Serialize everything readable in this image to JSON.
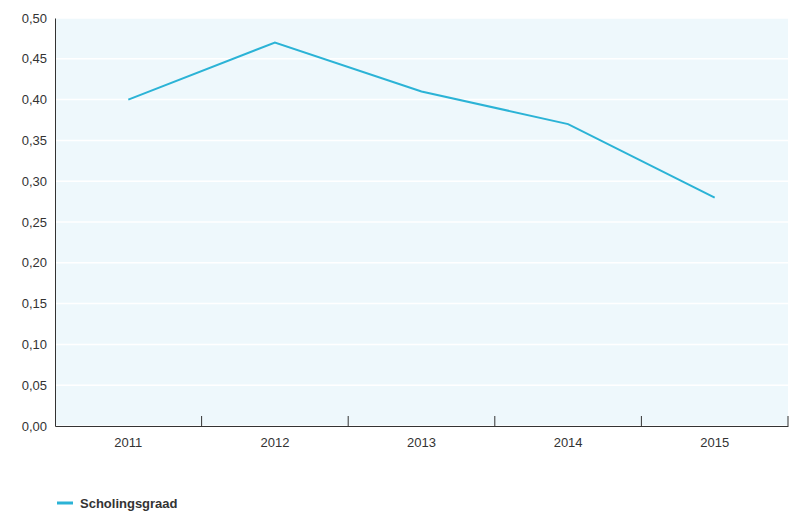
{
  "chart_data": {
    "type": "line",
    "categories": [
      "2011",
      "2012",
      "2013",
      "2014",
      "2015"
    ],
    "series": [
      {
        "name": "Scholingsgraad",
        "color": "#2bb3d6",
        "values": [
          0.4,
          0.47,
          0.41,
          0.37,
          0.28
        ]
      }
    ],
    "ylim": [
      0,
      0.5
    ],
    "yticks": [
      {
        "value": 0,
        "label": "0,00"
      },
      {
        "value": 0.05,
        "label": "0,05"
      },
      {
        "value": 0.1,
        "label": "0,10"
      },
      {
        "value": 0.15,
        "label": "0,15"
      },
      {
        "value": 0.2,
        "label": "0,20"
      },
      {
        "value": 0.25,
        "label": "0,25"
      },
      {
        "value": 0.3,
        "label": "0,30"
      },
      {
        "value": 0.35,
        "label": "0,35"
      },
      {
        "value": 0.4,
        "label": "0,40"
      },
      {
        "value": 0.45,
        "label": "0,45"
      },
      {
        "value": 0.5,
        "label": "0,50"
      }
    ],
    "grid": true,
    "legend": "bottom-left"
  }
}
